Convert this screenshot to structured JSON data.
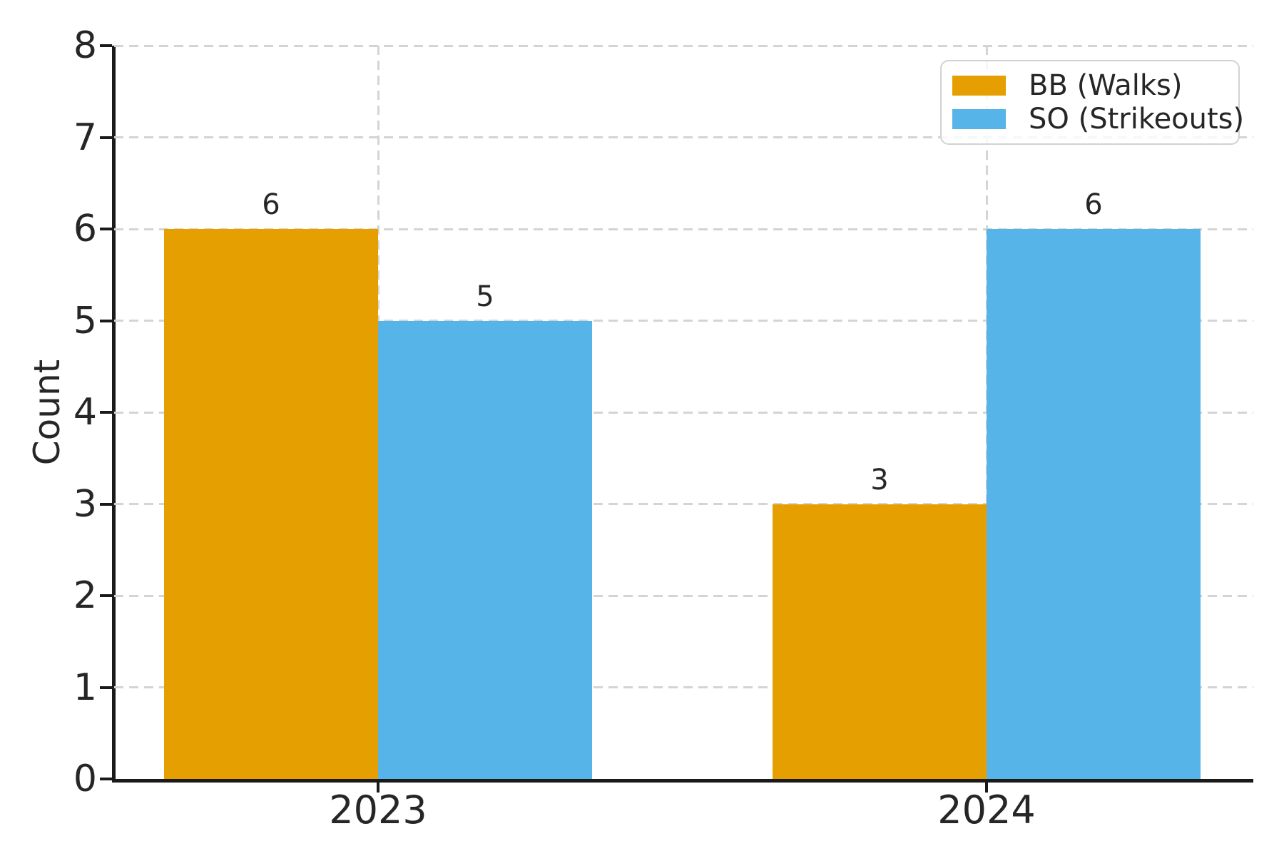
{
  "chart_data": {
    "type": "bar",
    "categories": [
      "2023",
      "2024"
    ],
    "series": [
      {
        "name": "BB (Walks)",
        "values": [
          6,
          3
        ],
        "color": "#E69F00"
      },
      {
        "name": "SO (Strikeouts)",
        "values": [
          5,
          6
        ],
        "color": "#56B4E9"
      }
    ],
    "title": "",
    "xlabel": "",
    "ylabel": "Count",
    "ylim": [
      0,
      8
    ],
    "yticks": [
      0,
      1,
      2,
      3,
      4,
      5,
      6,
      7,
      8
    ],
    "bar_value_labels": {
      "2023": [
        6,
        5
      ],
      "2024": [
        3,
        6
      ]
    },
    "grid": "dashed horizontal lines at each integer tick, dashed vertical line at each category center",
    "legend_position": "upper right",
    "legend_entries": [
      "BB (Walks)",
      "SO (Strikeouts)"
    ]
  }
}
